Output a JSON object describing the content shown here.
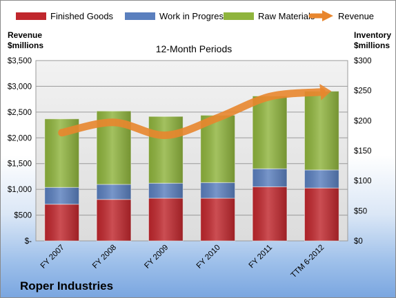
{
  "chart_data": {
    "type": "bar",
    "subtitle": "12-Month Periods",
    "company": "Roper Industries",
    "left_axis": {
      "title_line1": "Revenue",
      "title_line2": "$millions",
      "ylim": [
        0,
        3500
      ],
      "ticks": [
        0,
        500,
        1000,
        1500,
        2000,
        2500,
        3000,
        3500
      ],
      "tick_labels": [
        "$-",
        "$500",
        "$1,000",
        "$1,500",
        "$2,000",
        "$2,500",
        "$3,000",
        "$3,500"
      ]
    },
    "right_axis": {
      "title_line1": "Inventory",
      "title_line2": "$millions",
      "ylim": [
        0,
        300
      ],
      "ticks": [
        0,
        50,
        100,
        150,
        200,
        250,
        300
      ],
      "tick_labels": [
        "$0",
        "$50",
        "$100",
        "$150",
        "$200",
        "$250",
        "$300"
      ]
    },
    "categories": [
      "FY 2007",
      "FY 2008",
      "FY 2009",
      "FY 2010",
      "FY 2011",
      "TTM 6-2012"
    ],
    "stacked_series": [
      {
        "name": "Finished Goods",
        "color": "#c0272d",
        "axis": "right",
        "values": [
          61,
          69,
          71,
          71,
          90,
          88
        ]
      },
      {
        "name": "Work in Progress",
        "color": "#5a7fbe",
        "axis": "right",
        "values": [
          28,
          25,
          25,
          26,
          30,
          30
        ]
      },
      {
        "name": "Raw Materials",
        "color": "#8fb43d",
        "axis": "right",
        "values": [
          114,
          122,
          111,
          112,
          121,
          131
        ]
      }
    ],
    "line_series": {
      "name": "Revenue",
      "color": "#e8862e",
      "axis": "left",
      "values": [
        2100,
        2300,
        2050,
        2390,
        2800,
        2890
      ]
    },
    "grid": true,
    "legend_position": "top"
  }
}
